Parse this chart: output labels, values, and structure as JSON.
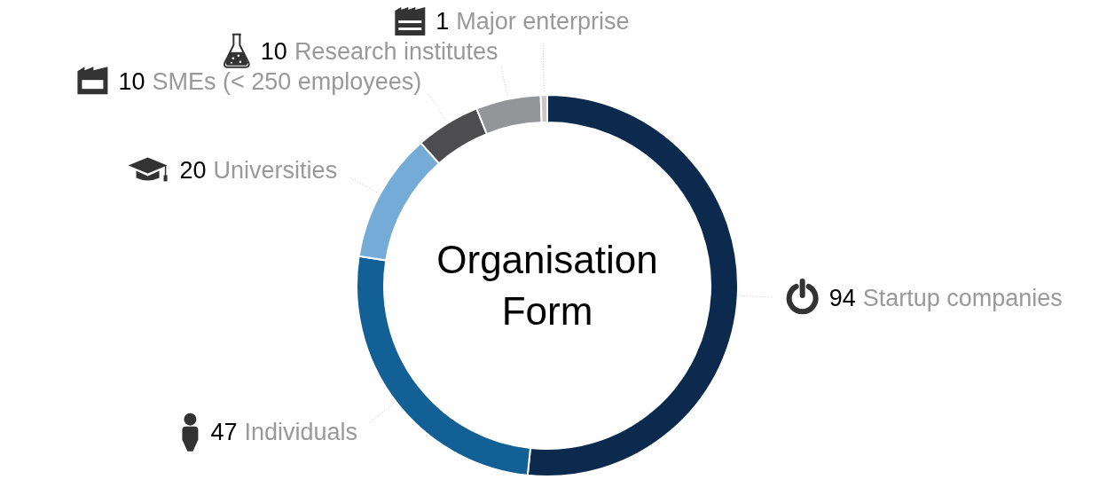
{
  "chart_data": {
    "type": "donut",
    "title": "Organisation Form",
    "categories": [
      "Startup companies",
      "Individuals",
      "Universities",
      "SMEs (< 250 employees)",
      "Research institutes",
      "Major enterprise"
    ],
    "values": [
      94,
      47,
      20,
      10,
      10,
      1
    ],
    "colors": [
      "#0c2a4d",
      "#136096",
      "#75acd7",
      "#4d4d4f",
      "#939598",
      "#c8c8c8"
    ],
    "data_labels": true
  }
}
